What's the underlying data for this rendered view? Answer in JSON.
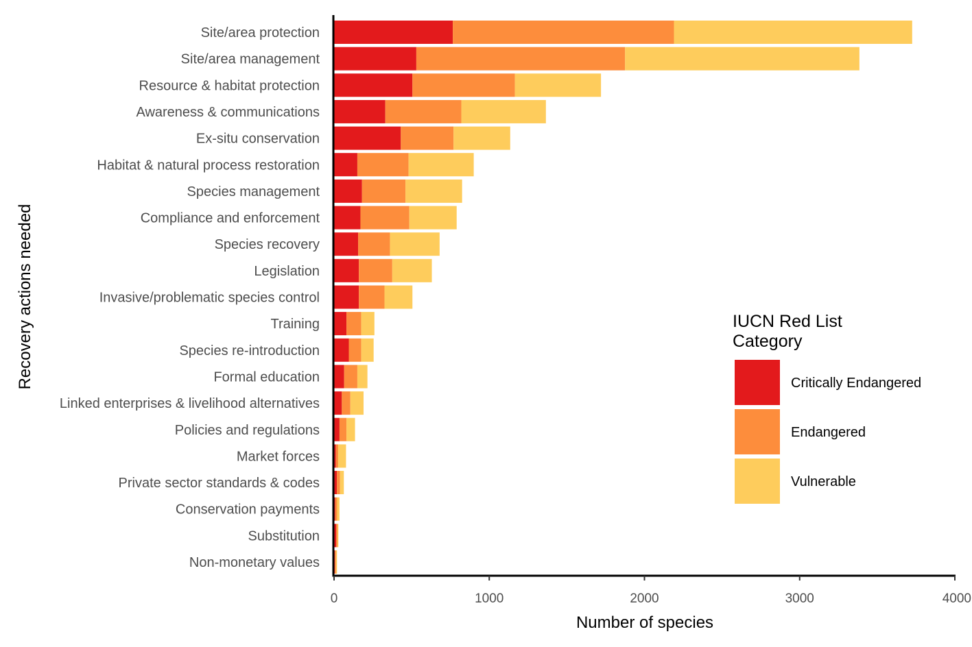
{
  "chart_data": {
    "type": "bar",
    "orientation": "horizontal",
    "stacked": true,
    "xlabel": "Number of species",
    "ylabel": "Recovery actions needed",
    "xlim": [
      0,
      4000
    ],
    "xticks": [
      0,
      1000,
      2000,
      3000,
      4000
    ],
    "grid": false,
    "legend": {
      "title_lines": [
        "IUCN Red List",
        "Category"
      ],
      "placement": "right-center-inside"
    },
    "categories": [
      "Site/area protection",
      "Site/area management",
      "Resource & habitat protection",
      "Awareness & communications",
      "Ex-situ conservation",
      "Habitat & natural process restoration",
      "Species management",
      "Compliance and enforcement",
      "Species recovery",
      "Legislation",
      "Invasive/problematic species control",
      "Training",
      "Species re-introduction",
      "Formal education",
      "Linked enterprises & livelihood alternatives",
      "Policies and regulations",
      "Market forces",
      "Private sector standards & codes",
      "Conservation payments",
      "Substitution",
      "Non-monetary values"
    ],
    "series": [
      {
        "name": "Critically Endangered",
        "color": "#e31a1c",
        "values": [
          765,
          530,
          505,
          330,
          430,
          150,
          180,
          170,
          155,
          160,
          160,
          80,
          95,
          65,
          50,
          35,
          12,
          18,
          8,
          14,
          5
        ]
      },
      {
        "name": "Endangered",
        "color": "#fd8d3c",
        "values": [
          1425,
          1345,
          660,
          490,
          340,
          330,
          280,
          315,
          205,
          215,
          165,
          95,
          80,
          85,
          55,
          45,
          15,
          20,
          12,
          8,
          8
        ]
      },
      {
        "name": "Vulnerable",
        "color": "#fecc5c",
        "values": [
          1535,
          1510,
          555,
          545,
          365,
          420,
          365,
          305,
          320,
          255,
          180,
          85,
          80,
          65,
          85,
          55,
          50,
          25,
          15,
          6,
          6
        ]
      }
    ]
  }
}
